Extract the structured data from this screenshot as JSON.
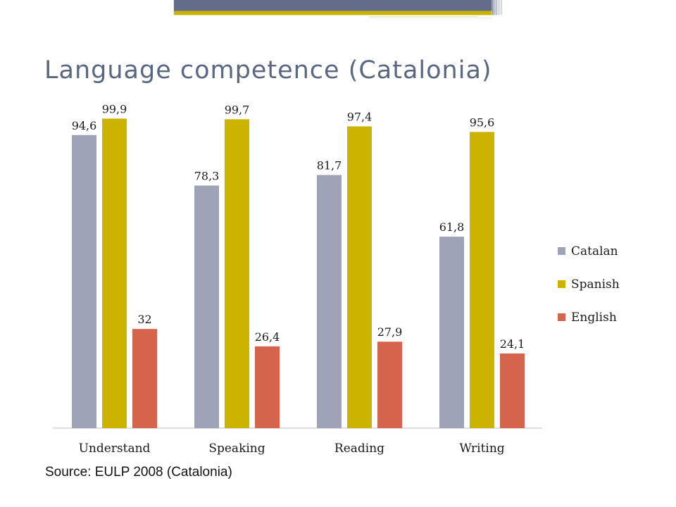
{
  "slide": {
    "title": "Language competence (Catalonia)",
    "source": "Source: EULP 2008 (Catalonia)"
  },
  "colors": {
    "header_bar": "#636d8a",
    "accent_line": "#c8b400",
    "title_text": "#5a6782"
  },
  "chart_data": {
    "type": "bar",
    "title": "",
    "xlabel": "",
    "ylabel": "",
    "ylim": [
      0,
      100
    ],
    "grid": false,
    "legend_position": "right",
    "categories": [
      "Understand",
      "Speaking",
      "Reading",
      "Writing"
    ],
    "series": [
      {
        "name": "Catalan",
        "color": "#9ea3b8",
        "values": [
          94.6,
          78.3,
          81.7,
          61.8
        ],
        "labels": [
          "94,6",
          "78,3",
          "81,7",
          "61,8"
        ]
      },
      {
        "name": "Spanish",
        "color": "#cbb300",
        "values": [
          99.9,
          99.7,
          97.4,
          95.6
        ],
        "labels": [
          "99,9",
          "99,7",
          "97,4",
          "95,6"
        ]
      },
      {
        "name": "English",
        "color": "#d4644c",
        "values": [
          32,
          26.4,
          27.9,
          24.1
        ],
        "labels": [
          "32",
          "26,4",
          "27,9",
          "24,1"
        ]
      }
    ]
  }
}
